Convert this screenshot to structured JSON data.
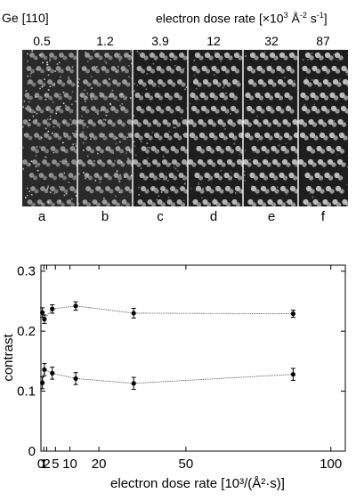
{
  "header": {
    "material": "Ge [110]",
    "dose_label_prefix": "electron dose rate [×10",
    "dose_label_sup1": "3",
    "dose_label_mid": " Å",
    "dose_label_sup2": "-2",
    "dose_label_mid2": " s",
    "dose_label_sup3": "-1",
    "dose_label_suffix": "]"
  },
  "panels": [
    {
      "dose": "0.5",
      "label": "a"
    },
    {
      "dose": "1.2",
      "label": "b"
    },
    {
      "dose": "3.9",
      "label": "c"
    },
    {
      "dose": "12",
      "label": "d"
    },
    {
      "dose": "32",
      "label": "e"
    },
    {
      "dose": "87",
      "label": "f"
    }
  ],
  "chart_data": {
    "type": "scatter",
    "xlabel": "electron dose rate [10³/(Å²·s)]",
    "ylabel": "contrast",
    "xlim": [
      0,
      105
    ],
    "ylim": [
      0,
      0.31
    ],
    "xticks": [
      0,
      1,
      2,
      5,
      10,
      20,
      50,
      100
    ],
    "yticks": [
      0,
      0.1,
      0.2,
      0.3
    ],
    "ytick_labels": [
      "0",
      "0.1",
      "0.2",
      "0.3"
    ],
    "series": [
      {
        "x": [
          0.5,
          1.2,
          3.9,
          12,
          32,
          87
        ],
        "y": [
          0.231,
          0.22,
          0.237,
          0.242,
          0.23,
          0.229
        ],
        "err": [
          0.008,
          0.007,
          0.007,
          0.007,
          0.008,
          0.006
        ]
      },
      {
        "x": [
          0.5,
          1.2,
          3.9,
          12,
          32,
          87
        ],
        "y": [
          0.114,
          0.136,
          0.13,
          0.121,
          0.113,
          0.128
        ],
        "err": [
          0.01,
          0.01,
          0.01,
          0.01,
          0.01,
          0.01
        ]
      }
    ]
  }
}
